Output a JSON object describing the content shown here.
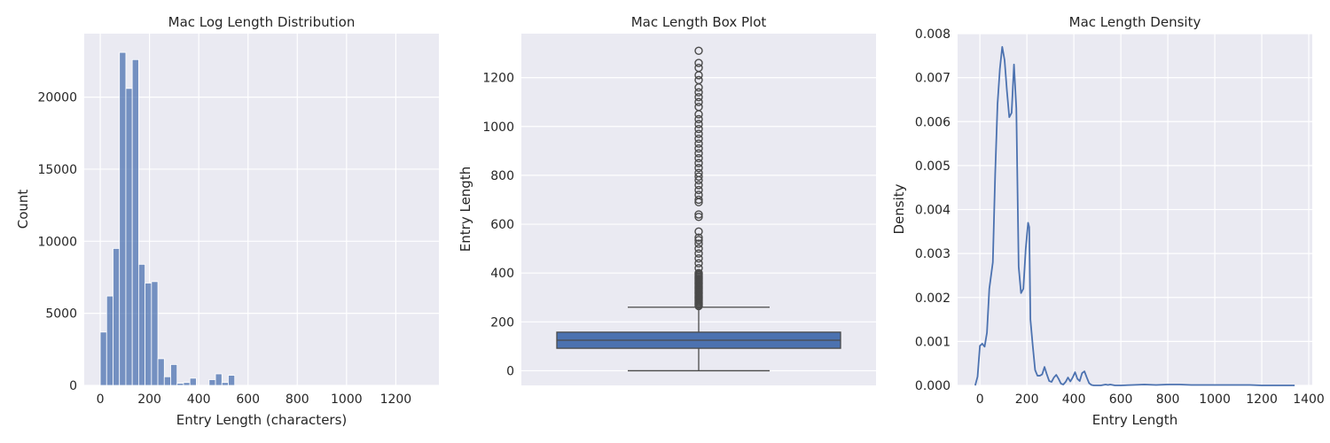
{
  "chart_data": [
    {
      "type": "bar",
      "title": "Mac Log Length Distribution",
      "xlabel": "Entry Length (characters)",
      "ylabel": "Count",
      "xlim": [
        -65,
        1375
      ],
      "ylim": [
        0,
        24400
      ],
      "xticks": [
        0,
        200,
        400,
        600,
        800,
        1000,
        1200
      ],
      "yticks": [
        0,
        5000,
        10000,
        15000,
        20000
      ],
      "grid": true,
      "color": "#4c72b0",
      "bin_edges": [
        0,
        26,
        52,
        78,
        104,
        130,
        156,
        182,
        208,
        234,
        260,
        286,
        312,
        338,
        364,
        390,
        416,
        442,
        468,
        494,
        520,
        546,
        572
      ],
      "values": [
        3700,
        6200,
        9500,
        23100,
        20600,
        22600,
        8400,
        7100,
        7200,
        1850,
        600,
        1450,
        150,
        200,
        500,
        0,
        0,
        400,
        800,
        200,
        700,
        0
      ]
    },
    {
      "type": "box",
      "title": "Mac Length Box Plot",
      "ylabel": "Entry Length",
      "ylim": [
        -60,
        1380
      ],
      "yticks": [
        0,
        200,
        400,
        600,
        800,
        1000,
        1200
      ],
      "grid": true,
      "color": "#4c72b0",
      "whisker_low": 0,
      "q1": 92,
      "median": 125,
      "q3": 158,
      "whisker_high": 260,
      "outliers": [
        265,
        270,
        275,
        280,
        285,
        290,
        295,
        300,
        305,
        310,
        315,
        320,
        325,
        330,
        335,
        340,
        345,
        350,
        355,
        360,
        365,
        370,
        375,
        380,
        385,
        390,
        395,
        400,
        420,
        440,
        460,
        480,
        500,
        520,
        535,
        545,
        570,
        630,
        640,
        690,
        700,
        720,
        740,
        760,
        780,
        795,
        810,
        830,
        850,
        870,
        890,
        910,
        930,
        950,
        970,
        990,
        1010,
        1030,
        1050,
        1080,
        1100,
        1120,
        1140,
        1160,
        1190,
        1210,
        1240,
        1260,
        1310
      ]
    },
    {
      "type": "line",
      "title": "Mac Length Density",
      "xlabel": "Entry Length",
      "ylabel": "Density",
      "xlim": [
        -95,
        1415
      ],
      "ylim": [
        0,
        0.008
      ],
      "xticks": [
        0,
        200,
        400,
        600,
        800,
        1000,
        1200,
        1400
      ],
      "yticks": [
        0.0,
        0.001,
        0.002,
        0.003,
        0.004,
        0.005,
        0.006,
        0.007,
        0.008
      ],
      "ytick_labels": [
        "0.000",
        "0.001",
        "0.002",
        "0.003",
        "0.004",
        "0.005",
        "0.006",
        "0.007",
        "0.008"
      ],
      "grid": true,
      "color": "#4c72b0",
      "x": [
        -20,
        -10,
        0,
        10,
        20,
        30,
        40,
        55,
        65,
        75,
        85,
        95,
        105,
        115,
        125,
        135,
        145,
        155,
        165,
        175,
        185,
        195,
        205,
        210,
        215,
        225,
        235,
        245,
        255,
        265,
        275,
        285,
        295,
        305,
        315,
        325,
        335,
        345,
        355,
        365,
        375,
        385,
        395,
        405,
        415,
        425,
        435,
        445,
        455,
        465,
        475,
        485,
        495,
        505,
        515,
        525,
        535,
        545,
        555,
        565,
        575,
        600,
        650,
        700,
        750,
        800,
        850,
        900,
        950,
        1000,
        1050,
        1100,
        1150,
        1200,
        1250,
        1300,
        1340
      ],
      "y": [
        0.0,
        0.0002,
        0.0009,
        0.00095,
        0.00088,
        0.0012,
        0.0022,
        0.0028,
        0.0048,
        0.0064,
        0.0072,
        0.0077,
        0.0074,
        0.0067,
        0.0061,
        0.0062,
        0.0073,
        0.0063,
        0.0027,
        0.0021,
        0.0022,
        0.0031,
        0.0037,
        0.0036,
        0.0015,
        0.0009,
        0.00035,
        0.00022,
        0.00022,
        0.00025,
        0.00042,
        0.00025,
        0.0001,
        8e-05,
        0.00018,
        0.00024,
        0.00015,
        4e-05,
        2e-05,
        8e-05,
        0.00018,
        9e-05,
        0.00018,
        0.0003,
        0.00015,
        0.0001,
        0.00028,
        0.00032,
        0.00018,
        5e-05,
        1e-05,
        0.0,
        0.0,
        0.0,
        0.0,
        1e-05,
        2e-05,
        1e-05,
        2e-05,
        1e-05,
        0.0,
        0.0,
        1e-05,
        2e-05,
        1e-05,
        2e-05,
        2e-05,
        1e-05,
        1e-05,
        1e-05,
        1e-05,
        1e-05,
        1e-05,
        0.0,
        0.0,
        0.0,
        0.0
      ]
    }
  ]
}
